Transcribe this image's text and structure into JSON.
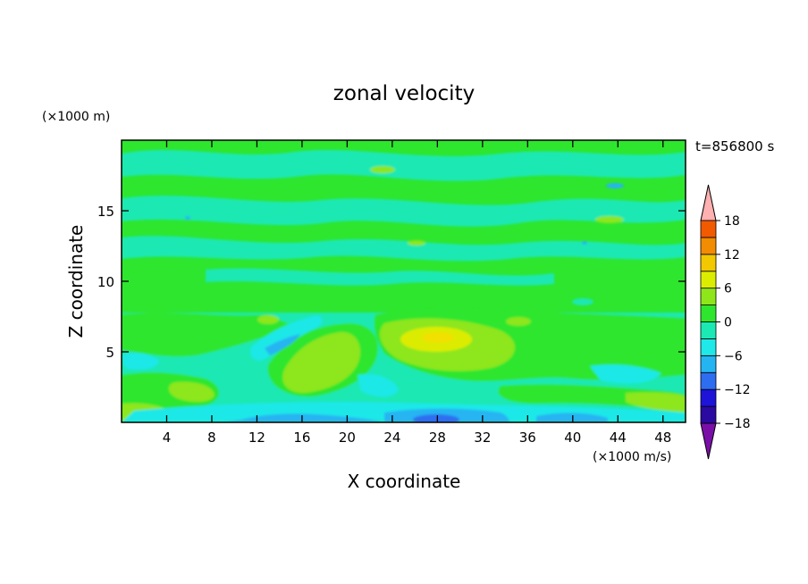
{
  "chart_data": {
    "type": "heatmap",
    "subtype": "filled-contour",
    "title": "zonal velocity",
    "time_label": "t=856800 s",
    "xlabel": "X coordinate",
    "ylabel": "Z coordinate",
    "x_unit": "(×1000 m/s)",
    "y_unit": "(×1000 m)",
    "xlim": [
      0,
      50
    ],
    "ylim": [
      0,
      20
    ],
    "x_ticks": [
      4,
      8,
      12,
      16,
      20,
      24,
      28,
      32,
      36,
      40,
      44,
      48
    ],
    "y_ticks": [
      5,
      10,
      15
    ],
    "colorbar": {
      "levels": [
        -21,
        -18,
        -15,
        -12,
        -9,
        -6,
        -3,
        0,
        3,
        6,
        9,
        12,
        15,
        18,
        21
      ],
      "tick_labels": [
        "18",
        "12",
        "6",
        "0",
        "−6",
        "−12",
        "−18"
      ],
      "tick_values": [
        18,
        12,
        6,
        0,
        -6,
        -12,
        -18
      ],
      "colors": [
        "#7a0fa8",
        "#2a0aa0",
        "#1d14d8",
        "#2d6ef0",
        "#25b4f2",
        "#1fe8e8",
        "#1ce8b4",
        "#2ee62e",
        "#8ee61a",
        "#dcec00",
        "#f2c800",
        "#f28c00",
        "#f25a00",
        "#e61a14",
        "#ffb0b0"
      ]
    },
    "features": [
      {
        "label": "positive maximum",
        "x": 28.5,
        "z": 6.0,
        "value": 7
      },
      {
        "label": "positive lobe",
        "x": 18.5,
        "z": 3.5,
        "value": 4
      },
      {
        "label": "negative tongue",
        "x": 14.5,
        "z": 5.5,
        "value": -6
      },
      {
        "label": "negative band near ground",
        "x": 28,
        "z": 0.4,
        "value": -9
      },
      {
        "label": "negative band near ground",
        "x": 40,
        "z": 0.6,
        "value": -6
      }
    ],
    "grid": false,
    "legend_position": "right"
  }
}
